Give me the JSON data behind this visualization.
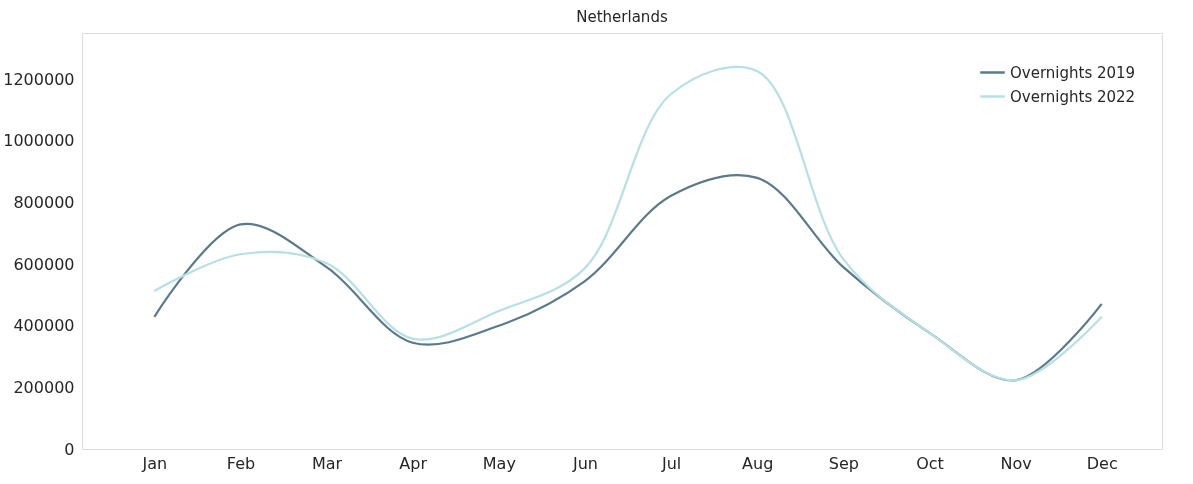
{
  "chart_data": {
    "type": "line",
    "title": "Netherlands",
    "categories": [
      "Jan",
      "Feb",
      "Mar",
      "Apr",
      "May",
      "Jun",
      "Jul",
      "Aug",
      "Sep",
      "Oct",
      "Nov",
      "Dec"
    ],
    "series": [
      {
        "name": "Overnights 2019",
        "color": "#5a7a8c",
        "values": [
          429000,
          729000,
          590000,
          345000,
          400000,
          545000,
          822000,
          880000,
          590000,
          377000,
          223000,
          471000
        ]
      },
      {
        "name": "Overnights 2022",
        "color": "#b7e0e4",
        "values": [
          513000,
          632000,
          603000,
          358000,
          448000,
          587000,
          1152000,
          1226000,
          616000,
          377000,
          223000,
          429000
        ]
      }
    ],
    "ylim": [
      0,
      1350000
    ],
    "yticks": [
      0,
      200000,
      400000,
      600000,
      800000,
      1000000,
      1200000
    ],
    "grid": false,
    "legend": "top right",
    "line_style": "solid",
    "marker": "none"
  }
}
